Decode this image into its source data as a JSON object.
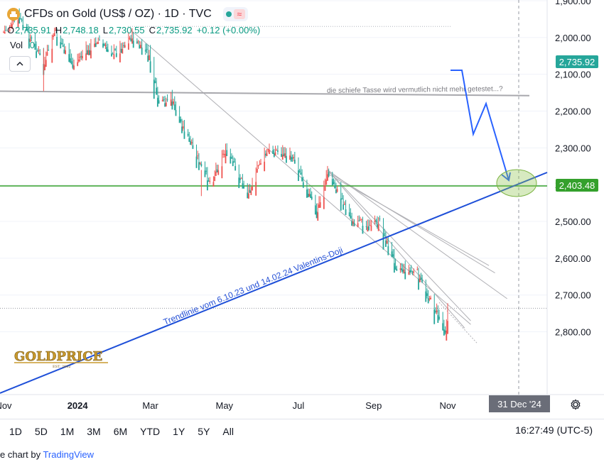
{
  "header": {
    "title": "CFDs on Gold (US$ / OZ) · 1D · TVC",
    "ohlc": [
      {
        "k": "O",
        "v": "2,735.91"
      },
      {
        "k": "H",
        "v": "2,748.18"
      },
      {
        "k": "L",
        "v": "2,730.55"
      },
      {
        "k": "C",
        "v": "2,735.92"
      },
      {
        "k": "",
        "v": "+0.12 (+0.00%)"
      }
    ],
    "vol_label": "Vol",
    "vol_value": "0"
  },
  "price_labels": {
    "current": "2,735.92",
    "support": "2,403.48",
    "current_color": "#26a69a",
    "support_color": "#4caf50"
  },
  "crosshair_date": "31 Dec '24",
  "time_ranges": [
    "1D",
    "5D",
    "1M",
    "3M",
    "6M",
    "YTD",
    "1Y",
    "5Y",
    "All"
  ],
  "clock": "16:27:49 (UTC-5)",
  "footer": {
    "prefix": "e chart by ",
    "brand": "TradingView"
  },
  "logo": {
    "text": "GOLDPRICE",
    "sub": "EST. 2002"
  },
  "colors": {
    "up": "#26a69a",
    "down": "#ef5350",
    "trend": "#1e4fd8",
    "support": "#34a02c",
    "gray": "#a8a8ad"
  },
  "chart_data": {
    "type": "candlestick",
    "title": "CFDs on Gold (US$ / OZ) · 1D · TVC",
    "yaxis": {
      "ticks": [
        1900,
        2000,
        2100,
        2200,
        2300,
        2400,
        2500,
        2600,
        2700,
        2800
      ],
      "ylim": [
        1840,
        2830
      ],
      "position": "right"
    },
    "xaxis": {
      "ticks": [
        "Nov",
        "2024",
        "Mar",
        "May",
        "Jul",
        "Sep",
        "Nov"
      ],
      "start": "2023-11-01",
      "end": "2025-01-05"
    },
    "price_anchors": [
      [
        "2023-11-01",
        1985
      ],
      [
        "2023-11-13",
        1940
      ],
      [
        "2023-11-30",
        2040
      ],
      [
        "2023-12-04",
        2070
      ],
      [
        "2023-12-13",
        1980
      ],
      [
        "2023-12-28",
        2070
      ],
      [
        "2024-01-17",
        2005
      ],
      [
        "2024-01-31",
        2040
      ],
      [
        "2024-02-14",
        1995
      ],
      [
        "2024-02-29",
        2045
      ],
      [
        "2024-03-08",
        2180
      ],
      [
        "2024-03-18",
        2160
      ],
      [
        "2024-03-28",
        2240
      ],
      [
        "2024-04-12",
        2350
      ],
      [
        "2024-04-19",
        2390
      ],
      [
        "2024-05-02",
        2300
      ],
      [
        "2024-05-20",
        2420
      ],
      [
        "2024-05-30",
        2340
      ],
      [
        "2024-06-07",
        2300
      ],
      [
        "2024-06-27",
        2320
      ],
      [
        "2024-07-16",
        2470
      ],
      [
        "2024-07-25",
        2360
      ],
      [
        "2024-08-16",
        2505
      ],
      [
        "2024-09-06",
        2500
      ],
      [
        "2024-09-20",
        2620
      ],
      [
        "2024-10-07",
        2640
      ],
      [
        "2024-10-30",
        2790
      ],
      [
        "2024-11-01",
        2736
      ]
    ],
    "annotations": [
      {
        "text": "Trendlinie vom 6.10.23 und 14.02.24 Valentins-Doji",
        "type": "trendline",
        "from": [
          "2023-10-06",
          1820
        ],
        "to": [
          "2025-01-10",
          2410
        ]
      },
      {
        "text": "die schiefe Tasse wird vermutlich nicht mehr getestet...?",
        "type": "trendline",
        "from": [
          "2023-11-01",
          2145
        ],
        "to": [
          "2025-01-05",
          2158
        ]
      },
      {
        "type": "horizontal",
        "value": 2403.48
      },
      {
        "type": "projection",
        "points": [
          [
            "2024-11-01",
            2712
          ],
          [
            "2024-11-10",
            2710
          ],
          [
            "2024-11-18",
            2540
          ],
          [
            "2024-11-29",
            2625
          ],
          [
            "2024-12-16",
            2430
          ]
        ]
      },
      {
        "type": "ellipse",
        "center": [
          "2024-12-26",
          2405
        ]
      }
    ]
  }
}
